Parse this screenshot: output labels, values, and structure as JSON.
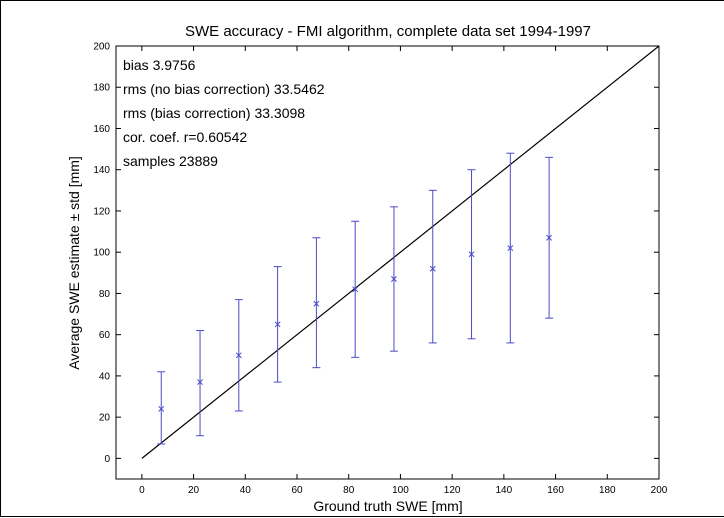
{
  "chart_data": {
    "type": "scatter",
    "title": "SWE accuracy - FMI algorithm, complete data set 1994-1997",
    "xlabel": "Ground truth SWE [mm]",
    "ylabel": "Average SWE estimate  ± std [mm]",
    "xlim": [
      -10,
      200
    ],
    "ylim": [
      -10,
      200
    ],
    "xticks": [
      "0",
      "20",
      "40",
      "60",
      "80",
      "100",
      "120",
      "140",
      "160",
      "180",
      "200"
    ],
    "yticks": [
      "0",
      "20",
      "40",
      "60",
      "80",
      "100",
      "120",
      "140",
      "160",
      "180",
      "200"
    ],
    "grid": false,
    "annotations": [
      "bias 3.9756",
      "rms (no bias correction) 33.5462",
      "rms (bias correction) 33.3098",
      "cor. coef. r=0.60542",
      "samples 23889"
    ],
    "reference_line": {
      "x": [
        0,
        200
      ],
      "y": [
        0,
        200
      ],
      "color": "#000000"
    },
    "series": [
      {
        "marker": "x",
        "color": "#4b4bc8",
        "x": [
          7.5,
          22.5,
          37.5,
          52.5,
          67.5,
          82.5,
          97.5,
          112.5,
          127.5,
          142.5,
          157.5
        ],
        "y": [
          24,
          37,
          50,
          65,
          75,
          82,
          87,
          92,
          99,
          102,
          107
        ],
        "y_low": [
          7,
          11,
          23,
          37,
          44,
          49,
          52,
          56,
          58,
          56,
          68
        ],
        "y_high": [
          42,
          62,
          77,
          93,
          107,
          115,
          122,
          130,
          140,
          148,
          146
        ]
      }
    ]
  }
}
